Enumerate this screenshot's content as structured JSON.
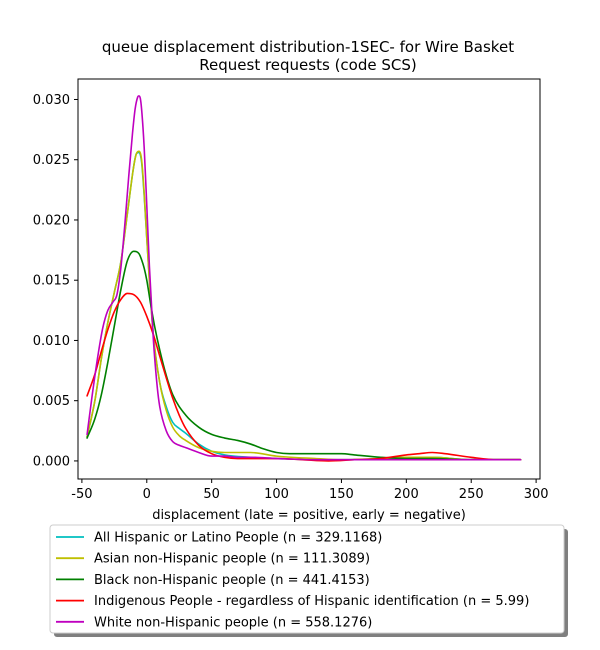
{
  "chart_data": {
    "type": "line",
    "title_lines": [
      "queue displacement distribution-1SEC-  for Wire Basket",
      "Request  requests (code SCS)"
    ],
    "xlabel": "displacement (late = positive, early = negative)",
    "ylabel": "",
    "xlim": [
      -53,
      303
    ],
    "ylim": [
      -0.0015,
      0.0317
    ],
    "xticks": [
      -50,
      0,
      50,
      100,
      150,
      200,
      250,
      300
    ],
    "xtick_labels": [
      "-50",
      "0",
      "50",
      "100",
      "150",
      "200",
      "250",
      "300"
    ],
    "yticks": [
      0.0,
      0.005,
      0.01,
      0.015,
      0.02,
      0.025,
      0.03
    ],
    "ytick_labels": [
      "0.000",
      "0.005",
      "0.010",
      "0.015",
      "0.020",
      "0.025",
      "0.030"
    ],
    "legend_position": "below",
    "series": [
      {
        "name": "All Hispanic or Latino People (n = 329.1168)",
        "color": "#00bfbf",
        "x": [
          -46,
          -40,
          -35,
          -30,
          -25,
          -20,
          -15,
          -10,
          -8,
          -6,
          -4,
          -2,
          0,
          2,
          5,
          10,
          15,
          20,
          25,
          30,
          40,
          50,
          60,
          80,
          100,
          130,
          150,
          180,
          200,
          220,
          250,
          288
        ],
        "y": [
          0.002,
          0.005,
          0.0085,
          0.0115,
          0.014,
          0.0165,
          0.0205,
          0.0245,
          0.0255,
          0.0256,
          0.0248,
          0.022,
          0.0185,
          0.015,
          0.0105,
          0.0065,
          0.0045,
          0.0032,
          0.0027,
          0.0023,
          0.0014,
          0.0008,
          0.0005,
          0.0003,
          0.0002,
          0.0001,
          0.0001,
          0.0002,
          0.0003,
          0.0003,
          0.0001,
          0.0001
        ]
      },
      {
        "name": "Asian non-Hispanic people (n = 111.3089)",
        "color": "#bfbf00",
        "x": [
          -46,
          -40,
          -35,
          -30,
          -25,
          -20,
          -15,
          -10,
          -8,
          -6,
          -4,
          -2,
          0,
          2,
          5,
          10,
          15,
          20,
          25,
          30,
          40,
          50,
          60,
          70,
          80,
          100,
          130,
          150,
          180,
          200,
          220,
          250,
          288
        ],
        "y": [
          0.002,
          0.005,
          0.0085,
          0.0115,
          0.014,
          0.0165,
          0.0205,
          0.0245,
          0.0255,
          0.0257,
          0.025,
          0.0222,
          0.0185,
          0.015,
          0.0105,
          0.0065,
          0.0042,
          0.0028,
          0.0021,
          0.0017,
          0.0011,
          0.0008,
          0.0007,
          0.0007,
          0.0007,
          0.0004,
          0.0002,
          0.0001,
          0.0002,
          0.0003,
          0.0003,
          0.0001,
          0.0001
        ]
      },
      {
        "name": "Black non-Hispanic people (n = 441.4153)",
        "color": "#008000",
        "x": [
          -46,
          -40,
          -35,
          -30,
          -25,
          -20,
          -15,
          -10,
          -6,
          -4,
          -2,
          0,
          3,
          6,
          10,
          15,
          20,
          30,
          40,
          50,
          60,
          70,
          80,
          90,
          100,
          110,
          130,
          150,
          160,
          180,
          200,
          220,
          250,
          288
        ],
        "y": [
          0.0019,
          0.0035,
          0.0055,
          0.0082,
          0.0112,
          0.0142,
          0.0166,
          0.0174,
          0.0172,
          0.0167,
          0.016,
          0.015,
          0.013,
          0.0112,
          0.0092,
          0.0071,
          0.0055,
          0.0038,
          0.0028,
          0.0022,
          0.0019,
          0.0017,
          0.0014,
          0.001,
          0.0007,
          0.0006,
          0.0006,
          0.0006,
          0.0005,
          0.0003,
          0.0002,
          0.0002,
          0.0001,
          0.0001
        ]
      },
      {
        "name": "Indigenous People - regardless of Hispanic identification (n = 5.99)",
        "color": "#ff0000",
        "x": [
          -46,
          -40,
          -35,
          -30,
          -25,
          -20,
          -15,
          -10,
          -5,
          0,
          5,
          10,
          15,
          20,
          25,
          30,
          40,
          50,
          60,
          70,
          80,
          100,
          120,
          140,
          160,
          180,
          200,
          210,
          220,
          230,
          250,
          270,
          288
        ],
        "y": [
          0.0054,
          0.0072,
          0.0091,
          0.0109,
          0.0124,
          0.0134,
          0.0139,
          0.0138,
          0.0132,
          0.012,
          0.0105,
          0.0087,
          0.0069,
          0.0052,
          0.0038,
          0.0027,
          0.0013,
          0.0006,
          0.0003,
          0.0002,
          0.0002,
          0.0002,
          0.0001,
          0.0,
          0.0001,
          0.0002,
          0.0005,
          0.0006,
          0.0007,
          0.0006,
          0.0003,
          0.0001,
          0.0001
        ]
      },
      {
        "name": "White non-Hispanic people (n = 558.1276)",
        "color": "#bf00bf",
        "x": [
          -46,
          -42,
          -38,
          -34,
          -30,
          -26,
          -23,
          -20,
          -17,
          -14,
          -11,
          -9,
          -7,
          -6,
          -5,
          -4,
          -2,
          0,
          2,
          5,
          8,
          10,
          15,
          20,
          25,
          30,
          40,
          50,
          60,
          70,
          80,
          100,
          130,
          150,
          180,
          200,
          220,
          250,
          288
        ],
        "y": [
          0.0022,
          0.0055,
          0.0085,
          0.011,
          0.0125,
          0.0132,
          0.0138,
          0.016,
          0.0195,
          0.0235,
          0.0272,
          0.0292,
          0.0302,
          0.0303,
          0.0301,
          0.0292,
          0.026,
          0.0212,
          0.0162,
          0.0102,
          0.0062,
          0.0045,
          0.0025,
          0.0016,
          0.0013,
          0.0011,
          0.0007,
          0.0004,
          0.0004,
          0.0003,
          0.0003,
          0.0002,
          0.0001,
          0.0001,
          0.0001,
          0.0001,
          0.0001,
          0.0001,
          0.0001
        ]
      }
    ]
  }
}
